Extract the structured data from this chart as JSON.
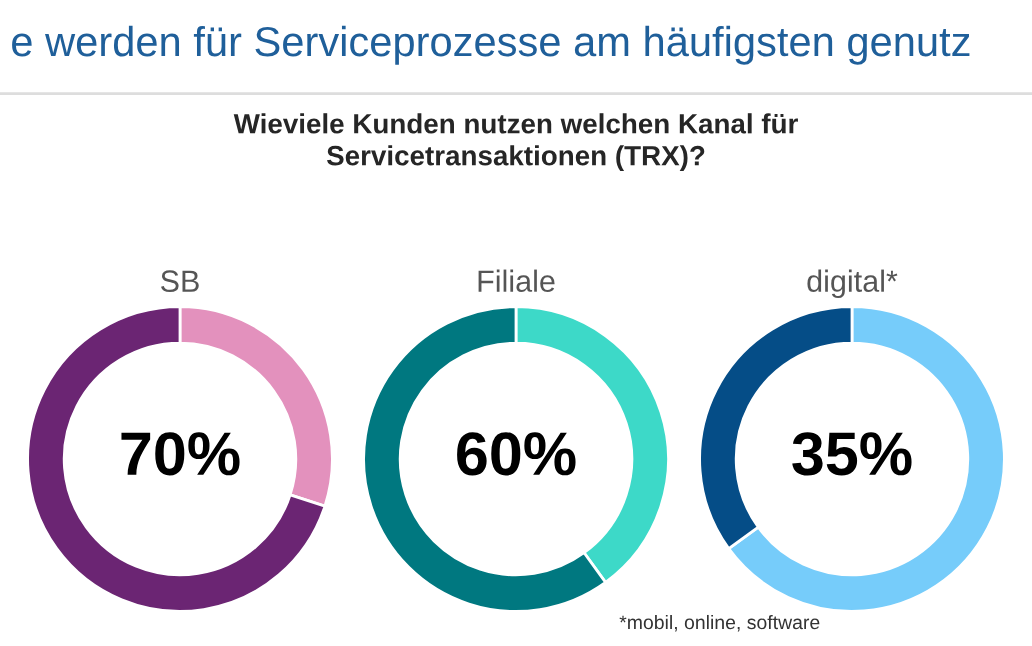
{
  "chart_data": [
    {
      "type": "donut",
      "title": "SB",
      "categories": [
        null,
        null
      ],
      "values": [
        30,
        70
      ],
      "colors": [
        "#e391bd",
        "#6b2573"
      ],
      "value_labels": [
        null,
        "70%"
      ],
      "annotations": [
        "e werden für Serviceprozesse am häufigsten genutz",
        "Wieviele Kunden nutzen welchen Kanal für\nServicetransaktionen (TRX)?"
      ]
    },
    {
      "type": "donut",
      "title": "Filiale",
      "categories": [
        null,
        null
      ],
      "values": [
        40,
        60
      ],
      "colors": [
        "#3dd9c8",
        "#007880"
      ],
      "value_labels": [
        null,
        "60%"
      ]
    },
    {
      "type": "donut",
      "title": "digital*",
      "categories": [
        null,
        null
      ],
      "values": [
        65,
        35
      ],
      "colors": [
        "#76ccfa",
        "#054d87"
      ],
      "value_labels": [
        null,
        "35%"
      ],
      "annotations": [
        "*mobil, online, software"
      ]
    }
  ]
}
